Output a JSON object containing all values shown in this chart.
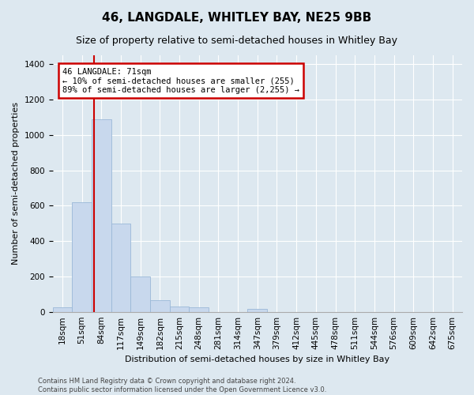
{
  "title": "46, LANGDALE, WHITLEY BAY, NE25 9BB",
  "subtitle": "Size of property relative to semi-detached houses in Whitley Bay",
  "xlabel": "Distribution of semi-detached houses by size in Whitley Bay",
  "ylabel": "Number of semi-detached properties",
  "footnote": "Contains HM Land Registry data © Crown copyright and database right 2024.\nContains public sector information licensed under the Open Government Licence v3.0.",
  "bin_labels": [
    "18sqm",
    "51sqm",
    "84sqm",
    "117sqm",
    "149sqm",
    "182sqm",
    "215sqm",
    "248sqm",
    "281sqm",
    "314sqm",
    "347sqm",
    "379sqm",
    "412sqm",
    "445sqm",
    "478sqm",
    "511sqm",
    "544sqm",
    "576sqm",
    "609sqm",
    "642sqm",
    "675sqm"
  ],
  "bar_heights": [
    25,
    620,
    1090,
    500,
    200,
    65,
    30,
    25,
    0,
    0,
    15,
    0,
    0,
    0,
    0,
    0,
    0,
    0,
    0,
    0,
    0
  ],
  "bar_color": "#c8d8ed",
  "bar_edge_color": "#9ab8d8",
  "vline_color": "#cc0000",
  "annotation_text": "46 LANGDALE: 71sqm\n← 10% of semi-detached houses are smaller (255)\n89% of semi-detached houses are larger (2,255) →",
  "annotation_box_color": "#ffffff",
  "annotation_edge_color": "#cc0000",
  "ylim": [
    0,
    1450
  ],
  "yticks": [
    0,
    200,
    400,
    600,
    800,
    1000,
    1200,
    1400
  ],
  "bg_color": "#dde8f0",
  "plot_bg_color": "#dde8f0",
  "grid_color": "#ffffff",
  "title_fontsize": 11,
  "subtitle_fontsize": 9,
  "xlabel_fontsize": 8,
  "ylabel_fontsize": 8,
  "tick_fontsize": 7.5,
  "footnote_fontsize": 6
}
